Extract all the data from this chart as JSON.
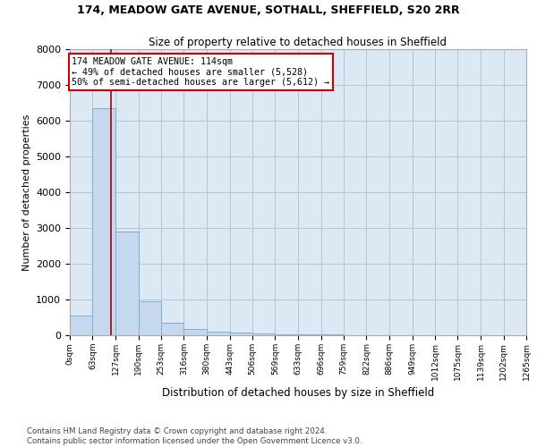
{
  "title1": "174, MEADOW GATE AVENUE, SOTHALL, SHEFFIELD, S20 2RR",
  "title2": "Size of property relative to detached houses in Sheffield",
  "xlabel": "Distribution of detached houses by size in Sheffield",
  "ylabel": "Number of detached properties",
  "footer1": "Contains HM Land Registry data © Crown copyright and database right 2024.",
  "footer2": "Contains public sector information licensed under the Open Government Licence v3.0.",
  "annotation_line1": "174 MEADOW GATE AVENUE: 114sqm",
  "annotation_line2": "← 49% of detached houses are smaller (5,528)",
  "annotation_line3": "50% of semi-detached houses are larger (5,612) →",
  "bar_edges": [
    0,
    63,
    127,
    190,
    253,
    316,
    380,
    443,
    506,
    569,
    633,
    696,
    759,
    822,
    886,
    949,
    1012,
    1075,
    1139,
    1202,
    1265
  ],
  "bar_heights": [
    550,
    6350,
    2900,
    960,
    340,
    170,
    100,
    75,
    50,
    30,
    20,
    15,
    10,
    8,
    6,
    5,
    4,
    3,
    2,
    2
  ],
  "bar_color": "#c5d8ee",
  "bar_edge_color": "#7bafd4",
  "vline_x": 114,
  "vline_color": "#aa0000",
  "annotation_box_color": "#cc0000",
  "ylim": [
    0,
    8000
  ],
  "xlim": [
    0,
    1265
  ],
  "tick_labels": [
    "0sqm",
    "63sqm",
    "127sqm",
    "190sqm",
    "253sqm",
    "316sqm",
    "380sqm",
    "443sqm",
    "506sqm",
    "569sqm",
    "633sqm",
    "696sqm",
    "759sqm",
    "822sqm",
    "886sqm",
    "949sqm",
    "1012sqm",
    "1075sqm",
    "1139sqm",
    "1202sqm",
    "1265sqm"
  ],
  "yticks": [
    0,
    1000,
    2000,
    3000,
    4000,
    5000,
    6000,
    7000,
    8000
  ],
  "background_color": "#ffffff",
  "ax_background": "#dce9f5",
  "grid_color": "#b0bec5"
}
